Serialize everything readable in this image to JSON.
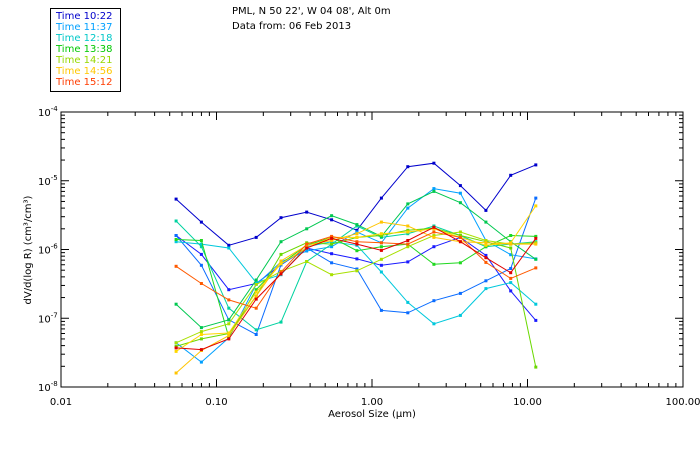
{
  "header": {
    "location": "PML, N 50 22', W 04 08', Alt 0m",
    "date": "Data from: 06 Feb 2013"
  },
  "colors": {
    "background": "#ffffff",
    "axis": "#000000"
  },
  "chart_data": {
    "type": "line",
    "xlabel": "Aerosol Size (µm)",
    "ylabel": "dV/d(log R) (cm³/cm³)",
    "x_scale": "log",
    "y_scale": "log",
    "xlim": [
      0.01,
      100
    ],
    "ylim": [
      1e-08,
      0.0001
    ],
    "x_ticks": [
      {
        "value": 0.01,
        "label": "0.01"
      },
      {
        "value": 0.1,
        "label": "0.10"
      },
      {
        "value": 1,
        "label": "1.00"
      },
      {
        "value": 10,
        "label": "10.00"
      },
      {
        "value": 100,
        "label": "100.00"
      }
    ],
    "y_ticks": [
      {
        "value": 1e-08,
        "base": "10",
        "exp": "-8"
      },
      {
        "value": 1e-07,
        "base": "10",
        "exp": "-7"
      },
      {
        "value": 1e-06,
        "base": "10",
        "exp": "-6"
      },
      {
        "value": 1e-05,
        "base": "10",
        "exp": "-5"
      },
      {
        "value": 0.0001,
        "base": "10",
        "exp": "-4"
      }
    ],
    "legend_position": "top-left",
    "x": [
      0.055,
      0.08,
      0.12,
      0.18,
      0.26,
      0.38,
      0.55,
      0.8,
      1.15,
      1.7,
      2.5,
      3.7,
      5.4,
      7.8,
      11.3
    ],
    "series": [
      {
        "name": "Time 10:22",
        "color": "#0000cc",
        "values": [
          5.4e-06,
          2.5e-06,
          1.15e-06,
          1.5e-06,
          2.9e-06,
          3.5e-06,
          2.7e-06,
          1.9e-06,
          5.6e-06,
          1.6e-05,
          1.8e-05,
          8.5e-06,
          3.7e-06,
          1.2e-05,
          1.7e-05
        ]
      },
      {
        "name": "Time 10:22",
        "color": "#1a1aff",
        "values": [
          1.6e-06,
          8.5e-07,
          2.6e-07,
          3.2e-07,
          6e-07,
          1.05e-06,
          8.7e-07,
          7.3e-07,
          5.9e-07,
          6.6e-07,
          1.1e-06,
          1.5e-06,
          8.2e-07,
          2.5e-07,
          9.3e-08
        ]
      },
      {
        "name": "Time 11:37",
        "color": "#0a6cff",
        "values": [
          1.6e-06,
          5.9e-07,
          9.5e-08,
          5.8e-08,
          6e-07,
          1.05e-06,
          6.4e-07,
          5.2e-07,
          1.3e-07,
          1.2e-07,
          1.8e-07,
          2.3e-07,
          3.5e-07,
          5.3e-07,
          5.6e-06
        ]
      },
      {
        "name": "Time 11:37",
        "color": "#00a0ff",
        "values": [
          4.4e-08,
          2.3e-08,
          5.2e-08,
          3.1e-07,
          6.6e-07,
          9.5e-07,
          1.1e-06,
          1.8e-06,
          1.25e-06,
          4e-06,
          7.7e-06,
          6.6e-06,
          1.35e-06,
          8.4e-07,
          7.3e-07
        ]
      },
      {
        "name": "Time 12:18",
        "color": "#00c8dc",
        "values": [
          1.3e-06,
          1.2e-06,
          1.05e-06,
          3.3e-07,
          4.3e-07,
          1.1e-06,
          1.3e-06,
          1.15e-06,
          4.7e-07,
          1.7e-07,
          8.3e-08,
          1.1e-07,
          2.7e-07,
          3.3e-07,
          1.6e-07
        ]
      },
      {
        "name": "Time 12:18",
        "color": "#00d2a0",
        "values": [
          2.6e-06,
          1.1e-06,
          1.4e-07,
          6.8e-08,
          8.8e-08,
          6.7e-07,
          1.2e-06,
          2.2e-06,
          1.5e-06,
          1.7e-06,
          2.2e-06,
          1.6e-06,
          1.1e-06,
          1.2e-06,
          1.3e-06
        ]
      },
      {
        "name": "Time 13:38",
        "color": "#00c850",
        "values": [
          1.6e-07,
          7.3e-08,
          9.5e-08,
          3.6e-07,
          1.3e-06,
          2e-06,
          3.1e-06,
          2.3e-06,
          1.55e-06,
          4.6e-06,
          7e-06,
          4.8e-06,
          2.5e-06,
          1.3e-06,
          7.2e-07
        ]
      },
      {
        "name": "Time 13:38",
        "color": "#20d820",
        "values": [
          1.4e-06,
          1.35e-06,
          5.3e-08,
          2.6e-07,
          6.2e-07,
          1.15e-06,
          1.5e-06,
          9.6e-07,
          1.1e-06,
          1.2e-06,
          6.1e-07,
          6.4e-07,
          1.1e-06,
          1.6e-06,
          1.55e-06
        ]
      },
      {
        "name": "Time 14:21",
        "color": "#6ad800",
        "values": [
          3.9e-08,
          5e-08,
          6e-08,
          2.1e-07,
          8.5e-07,
          1.25e-06,
          1.2e-06,
          1.5e-06,
          1.6e-06,
          1.9e-06,
          2.05e-06,
          1.6e-06,
          1.3e-06,
          1.05e-06,
          1.95e-08
        ]
      },
      {
        "name": "Time 14:21",
        "color": "#a8e000",
        "values": [
          4.4e-08,
          6.4e-08,
          8.3e-08,
          3.1e-07,
          4.8e-07,
          6.7e-07,
          4.3e-07,
          4.9e-07,
          7.2e-07,
          1.1e-06,
          1.6e-06,
          1.8e-06,
          1.35e-06,
          1.2e-06,
          1.25e-06
        ]
      },
      {
        "name": "Time 14:56",
        "color": "#ffd700",
        "values": [
          3.3e-08,
          5.8e-08,
          6.1e-08,
          2.4e-07,
          6.2e-07,
          1.05e-06,
          1.5e-06,
          1.5e-06,
          1.7e-06,
          1.8e-06,
          2e-06,
          1.5e-06,
          1.15e-06,
          1.25e-06,
          4.3e-06
        ]
      },
      {
        "name": "Time 14:56",
        "color": "#ffc400",
        "values": [
          1.6e-08,
          3.4e-08,
          5.6e-08,
          2.1e-07,
          6.8e-07,
          1.15e-06,
          1.35e-06,
          1.7e-06,
          2.5e-06,
          2.2e-06,
          1.5e-06,
          1.3e-06,
          1.25e-06,
          1.2e-06,
          1.2e-06
        ]
      },
      {
        "name": "Time 15:12",
        "color": "#ff5a00",
        "values": [
          5.7e-07,
          3.2e-07,
          1.85e-07,
          1.4e-07,
          4.7e-07,
          1.2e-06,
          1.55e-06,
          1.3e-06,
          1.25e-06,
          1.2e-06,
          1.8e-06,
          1.5e-06,
          6.5e-07,
          3.8e-07,
          5.4e-07
        ]
      },
      {
        "name": "Time 15:12",
        "color": "#e00000",
        "values": [
          3.7e-08,
          3.5e-08,
          5e-08,
          1.9e-07,
          4.4e-07,
          1.05e-06,
          1.45e-06,
          1.2e-06,
          9.7e-07,
          1.35e-06,
          2.1e-06,
          1.3e-06,
          7.6e-07,
          4.6e-07,
          1.45e-06
        ]
      }
    ],
    "legend": [
      {
        "label": "Time 10:22",
        "color": "#0000cc"
      },
      {
        "label": "Time 11:37",
        "color": "#00a0ff"
      },
      {
        "label": "Time 12:18",
        "color": "#00c8c8"
      },
      {
        "label": "Time 13:38",
        "color": "#00c800"
      },
      {
        "label": "Time 14:21",
        "color": "#96d800"
      },
      {
        "label": "Time 14:56",
        "color": "#ffc800"
      },
      {
        "label": "Time 15:12",
        "color": "#ff3c00"
      }
    ]
  }
}
